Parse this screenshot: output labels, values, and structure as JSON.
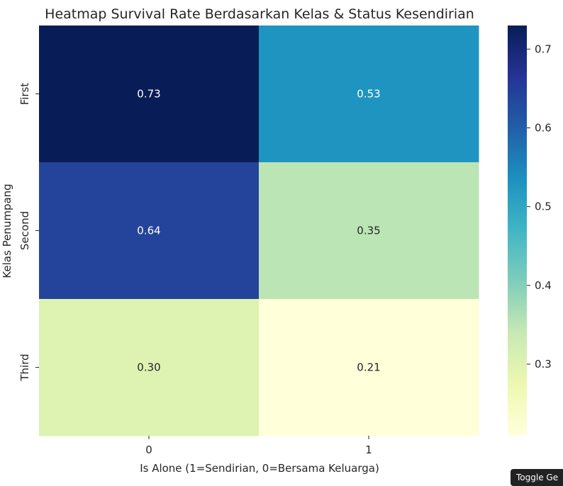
{
  "chart_data": {
    "type": "heatmap",
    "title": "Heatmap Survival Rate Berdasarkan Kelas & Status Kesendirian",
    "xlabel": "Is Alone (1=Sendirian, 0=Bersama Keluarga)",
    "ylabel": "Kelas Penumpang",
    "x_categories": [
      "0",
      "1"
    ],
    "y_categories": [
      "First",
      "Second",
      "Third"
    ],
    "values": [
      [
        0.73,
        0.53
      ],
      [
        0.64,
        0.35
      ],
      [
        0.3,
        0.21
      ]
    ],
    "labels": [
      [
        "0.73",
        "0.53"
      ],
      [
        "0.64",
        "0.35"
      ],
      [
        "0.30",
        "0.21"
      ]
    ],
    "colorscale": "YlGnBu",
    "colorbar": {
      "vmin": 0.21,
      "vmax": 0.73,
      "ticks": [
        0.3,
        0.4,
        0.5,
        0.6,
        0.7
      ],
      "tick_labels": [
        "0.3",
        "0.4",
        "0.5",
        "0.6",
        "0.7"
      ]
    }
  },
  "overlay": {
    "toggle_label": "Toggle Ge"
  }
}
